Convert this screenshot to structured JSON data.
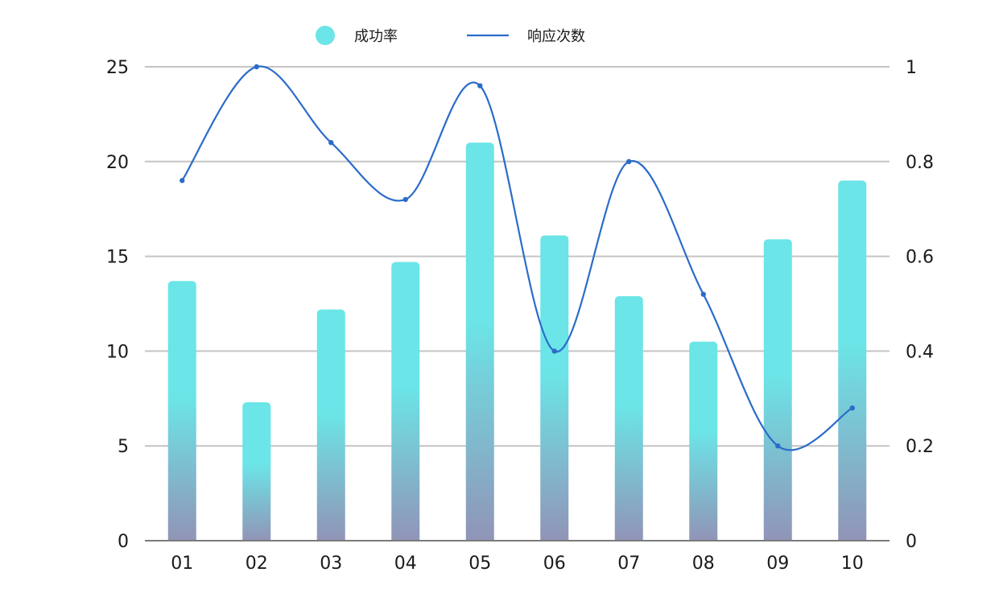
{
  "chart_data": {
    "type": "bar",
    "categories": [
      "01",
      "02",
      "03",
      "04",
      "05",
      "06",
      "07",
      "08",
      "09",
      "10"
    ],
    "series": [
      {
        "name": "成功率",
        "type": "bar",
        "axis": "left",
        "values": [
          13.7,
          7.3,
          12.2,
          14.7,
          21.0,
          16.1,
          12.9,
          10.5,
          15.9,
          19.0
        ],
        "colors": {
          "top": "#6be5e7",
          "bottom": "#9194b7"
        }
      },
      {
        "name": "响应次数",
        "type": "line",
        "axis": "right",
        "smooth": true,
        "values": [
          0.76,
          1.0,
          0.84,
          0.72,
          0.96,
          0.4,
          0.8,
          0.52,
          0.2,
          0.28
        ],
        "color": "#2b6cc9"
      }
    ],
    "y_left": {
      "min": 0,
      "max": 25,
      "ticks": [
        "0",
        "5",
        "10",
        "15",
        "20",
        "25"
      ]
    },
    "y_right": {
      "min": 0,
      "max": 1,
      "ticks": [
        "0",
        "0.2",
        "0.4",
        "0.6",
        "0.8",
        "1"
      ]
    },
    "grid": true,
    "legend_position": "top-center"
  }
}
